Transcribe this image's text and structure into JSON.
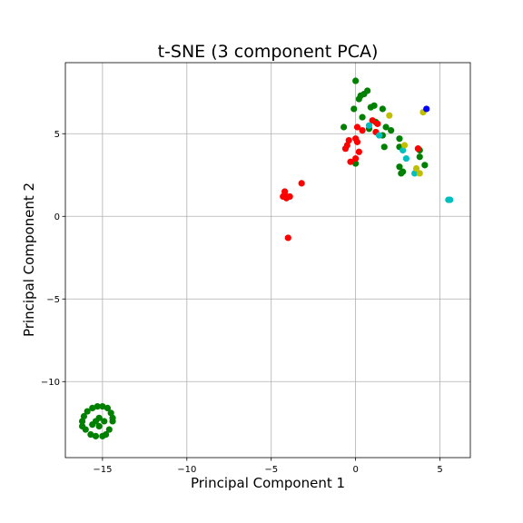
{
  "chart_data": {
    "type": "scatter",
    "title": "t-SNE (3 component PCA)",
    "xlabel": "Principal Component 1",
    "ylabel": "Principal Component 2",
    "xlim": [
      -17.2,
      6.8
    ],
    "ylim": [
      -14.6,
      9.3
    ],
    "xticks": [
      -15,
      -10,
      -5,
      0,
      5
    ],
    "yticks": [
      -10,
      -5,
      0,
      5
    ],
    "xtick_labels": [
      "−15",
      "−10",
      "−5",
      "0",
      "5"
    ],
    "ytick_labels": [
      "−10",
      "−5",
      "0",
      "5"
    ],
    "grid": true,
    "series": [
      {
        "color": "#008000",
        "points": [
          [
            0.0,
            8.2
          ],
          [
            0.2,
            7.1
          ],
          [
            0.3,
            7.3
          ],
          [
            0.5,
            7.4
          ],
          [
            0.7,
            7.6
          ],
          [
            -0.1,
            6.5
          ],
          [
            0.9,
            6.6
          ],
          [
            1.1,
            6.7
          ],
          [
            1.6,
            6.5
          ],
          [
            0.4,
            6.0
          ],
          [
            -0.7,
            5.4
          ],
          [
            0.8,
            5.3
          ],
          [
            1.2,
            5.7
          ],
          [
            1.8,
            5.4
          ],
          [
            2.1,
            5.2
          ],
          [
            1.6,
            4.9
          ],
          [
            1.7,
            4.2
          ],
          [
            2.6,
            4.7
          ],
          [
            2.6,
            4.2
          ],
          [
            3.8,
            4.0
          ],
          [
            3.8,
            3.6
          ],
          [
            4.1,
            3.1
          ],
          [
            2.6,
            3.0
          ],
          [
            2.7,
            2.6
          ],
          [
            2.8,
            2.7
          ],
          [
            0.0,
            3.2
          ],
          [
            -15.0,
            -11.5
          ],
          [
            -15.3,
            -11.5
          ],
          [
            -15.6,
            -11.6
          ],
          [
            -14.7,
            -11.6
          ],
          [
            -15.9,
            -11.8
          ],
          [
            -14.5,
            -11.9
          ],
          [
            -16.1,
            -12.1
          ],
          [
            -14.4,
            -12.2
          ],
          [
            -16.2,
            -12.4
          ],
          [
            -14.4,
            -12.4
          ],
          [
            -16.2,
            -12.7
          ],
          [
            -14.6,
            -12.9
          ],
          [
            -16.0,
            -12.9
          ],
          [
            -15.7,
            -13.2
          ],
          [
            -14.8,
            -13.2
          ],
          [
            -15.4,
            -13.3
          ],
          [
            -15.0,
            -13.3
          ],
          [
            -15.6,
            -12.6
          ],
          [
            -15.2,
            -12.7
          ],
          [
            -14.9,
            -12.4
          ],
          [
            -15.2,
            -12.2
          ],
          [
            -15.4,
            -12.4
          ]
        ]
      },
      {
        "color": "#ff0000",
        "points": [
          [
            0.1,
            5.4
          ],
          [
            0.4,
            5.2
          ],
          [
            1.0,
            5.8
          ],
          [
            1.3,
            5.6
          ],
          [
            1.2,
            5.1
          ],
          [
            -0.4,
            4.6
          ],
          [
            -0.5,
            4.3
          ],
          [
            -0.6,
            4.1
          ],
          [
            0.0,
            4.7
          ],
          [
            0.1,
            4.5
          ],
          [
            0.2,
            3.9
          ],
          [
            -0.3,
            3.3
          ],
          [
            0.0,
            3.5
          ],
          [
            3.7,
            4.1
          ],
          [
            -3.2,
            2.0
          ],
          [
            -4.2,
            1.5
          ],
          [
            -4.3,
            1.2
          ],
          [
            -4.1,
            1.1
          ],
          [
            -3.9,
            1.2
          ],
          [
            -4.2,
            1.3
          ],
          [
            -4.0,
            -1.3
          ]
        ]
      },
      {
        "color": "#00bfbf",
        "points": [
          [
            0.8,
            5.5
          ],
          [
            1.4,
            4.9
          ],
          [
            2.8,
            4.0
          ],
          [
            3.0,
            3.5
          ],
          [
            3.5,
            2.6
          ],
          [
            5.5,
            1.0
          ],
          [
            5.6,
            1.0
          ]
        ]
      },
      {
        "color": "#bfbf00",
        "points": [
          [
            2.0,
            6.1
          ],
          [
            4.0,
            6.3
          ],
          [
            2.9,
            4.3
          ],
          [
            3.6,
            2.9
          ],
          [
            3.8,
            2.6
          ]
        ]
      },
      {
        "color": "#0000ff",
        "points": [
          [
            4.2,
            6.5
          ]
        ]
      }
    ]
  }
}
